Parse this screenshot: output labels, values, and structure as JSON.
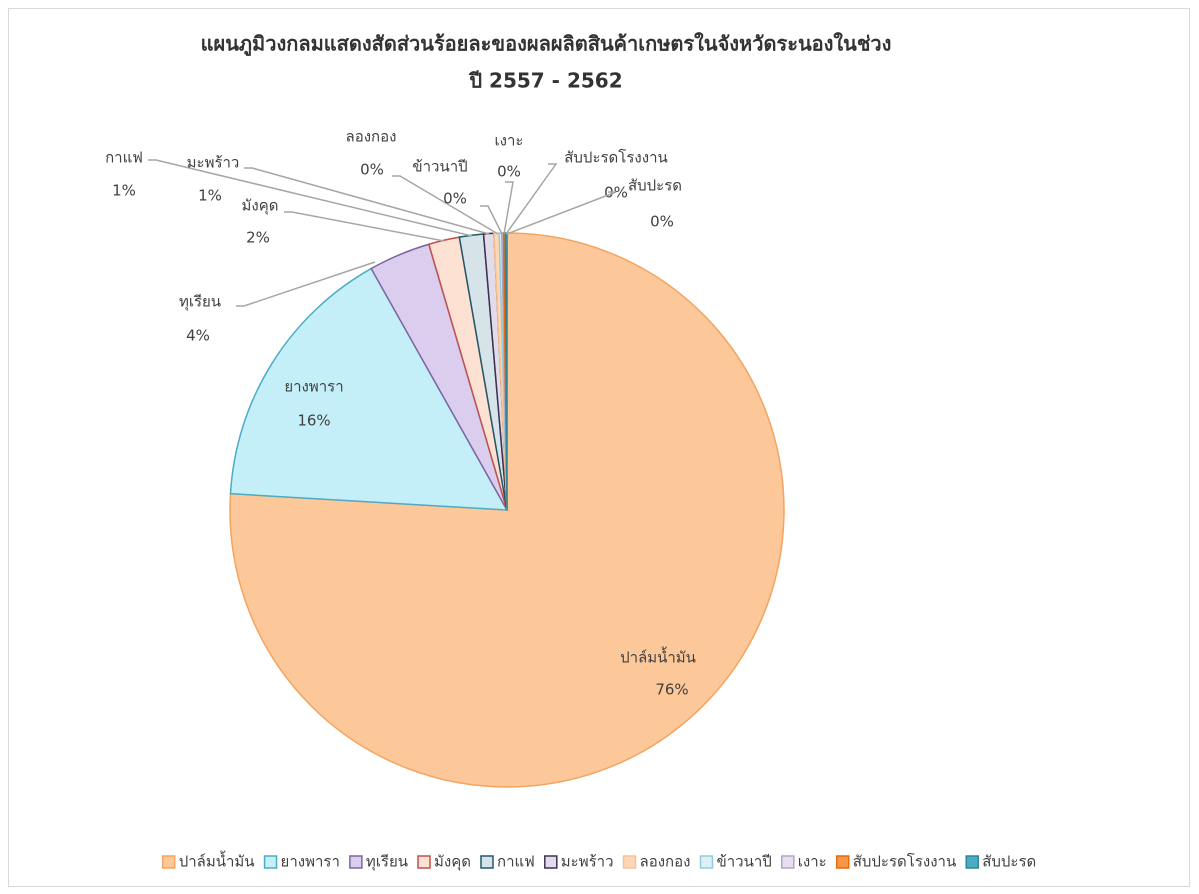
{
  "chart_data": {
    "type": "pie",
    "title": "แผนภูมิวงกลมแสดงสัดส่วนร้อยละของผลผลิตสินค้าเกษตรในจังหวัดระนองในช่วง",
    "subtitle": "ปี 2557 - 2562",
    "categories": [
      "ปาล์มน้ำมัน",
      "ยางพารา",
      "ทุเรียน",
      "มังคุด",
      "กาแฟ",
      "มะพร้าว",
      "ลองกอง",
      "ข้าวนาปี",
      "เงาะ",
      "สับปะรดโรงงาน",
      "สับปะรด"
    ],
    "values": [
      75.9,
      15.9,
      3.6,
      1.8,
      1.4,
      0.6,
      0.3,
      0.15,
      0.1,
      0.1,
      0.1
    ],
    "value_labels": [
      "76%",
      "16%",
      "4%",
      "2%",
      "1%",
      "1%",
      "0%",
      "0%",
      "0%",
      "0%",
      "0%"
    ],
    "colors": [
      "#fcc899",
      "#c4eff9",
      "#dbcdee",
      "#fde1d2",
      "#d6e4ea",
      "#e1dce9",
      "#fdd7b6",
      "#dcf0f6",
      "#e6e0ee",
      "#f79646",
      "#4bacc6"
    ],
    "edge_colors": [
      "#f4a460",
      "#4bacc6",
      "#8064a2",
      "#c0504d",
      "#215968",
      "#3f3151",
      "#fac090",
      "#93cddd",
      "#b3a2c7",
      "#e46c0a",
      "#31859c"
    ],
    "legend": "bottom"
  }
}
